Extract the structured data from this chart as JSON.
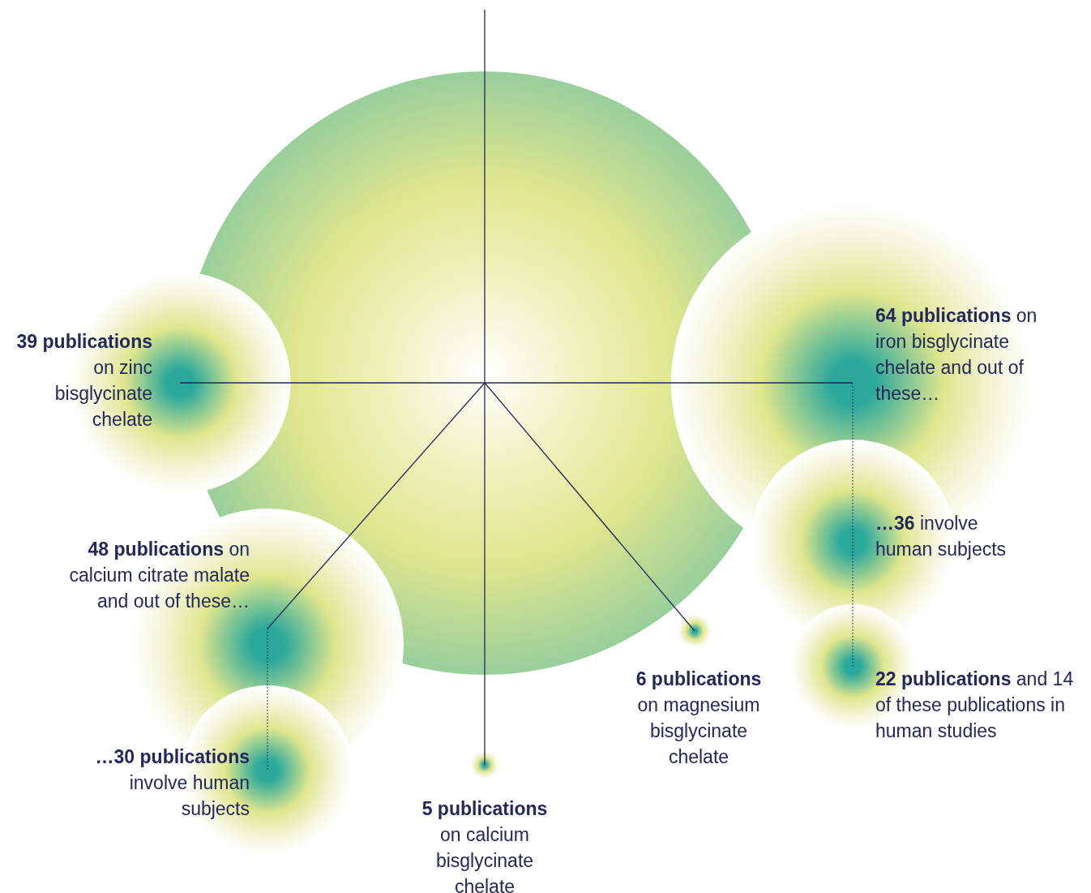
{
  "chart_data": {
    "type": "other",
    "categories": [
      "on zinc bisglycinate chelate",
      "on iron bisglycinate chelate and out of these…",
      "involve human subjects",
      "on calcium citrate malate and out of these…",
      "involve human subjects",
      "on calcium bisglycinate chelate",
      "on magnesium bisglycinate chelate",
      "and 14 of these publications in human studies"
    ],
    "values": [
      39,
      64,
      36,
      48,
      30,
      5,
      6,
      22
    ],
    "value_labels": [
      "39 publications",
      "64 publications",
      "…36",
      "48 publications",
      "…30 publications",
      "5 publications",
      "6 publications",
      "22 publications"
    ],
    "color": "#2aa89b"
  }
}
